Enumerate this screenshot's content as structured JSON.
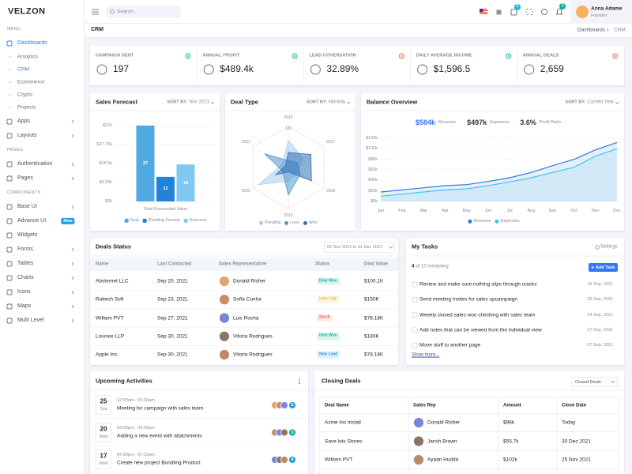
{
  "sidebar": {
    "logo": "VELZON",
    "sections": [
      {
        "title": "MENU",
        "items": [
          {
            "label": "Dashboards",
            "children": [
              "Analytics",
              "CRM",
              "Ecommerce",
              "Crypto",
              "Projects"
            ]
          },
          {
            "label": "Apps"
          },
          {
            "label": "Layouts"
          }
        ]
      },
      {
        "title": "PAGES",
        "items": [
          {
            "label": "Authentication"
          },
          {
            "label": "Pages"
          }
        ]
      },
      {
        "title": "COMPONENTS",
        "items": [
          {
            "label": "Base UI"
          },
          {
            "label": "Advance UI",
            "badge": "New"
          },
          {
            "label": "Widgets"
          },
          {
            "label": "Forms"
          },
          {
            "label": "Tables"
          },
          {
            "label": "Charts"
          },
          {
            "label": "Icons"
          },
          {
            "label": "Maps"
          },
          {
            "label": "Multi Level"
          }
        ]
      }
    ]
  },
  "topbar": {
    "search_placeholder": "Search...",
    "cart_badge": "2",
    "notification_badge": "3",
    "user": {
      "name": "Anna Adame",
      "role": "Founder"
    }
  },
  "page_header": {
    "title": "CRM",
    "breadcrumb": [
      "Dashboards",
      "CRM"
    ]
  },
  "stats": [
    {
      "label": "CAMPAIGN SENT",
      "value": "197",
      "trend_color": "#0ab39c"
    },
    {
      "label": "ANNUAL PROFIT",
      "value": "$489.4k",
      "trend_color": "#0ab39c"
    },
    {
      "label": "LEAD COVERSATION",
      "value": "32.89%",
      "trend_color": "#f06548"
    },
    {
      "label": "DAILY AVERAGE INCOME",
      "value": "$1,596.5",
      "trend_color": "#0ab39c"
    },
    {
      "label": "ANNUAL DEALS",
      "value": "2,659",
      "trend_color": "#f06548"
    }
  ],
  "chart_data": [
    {
      "type": "bar",
      "title": "Sales Forecast",
      "sort_label": "SORT BY:",
      "sort_value": "Nov 2021",
      "categories": [
        "Total Forecasted Value"
      ],
      "series": [
        {
          "name": "Goal",
          "color": "#4fa9e3",
          "values": [
            37
          ]
        },
        {
          "name": "Pending Forcast",
          "color": "#2282d9",
          "values": [
            12
          ]
        },
        {
          "name": "Revenue",
          "color": "#7ec8f2",
          "values": [
            18
          ]
        }
      ],
      "ylim": [
        0,
        37
      ],
      "yticks": [
        {
          "value": 0,
          "label": "$0k"
        },
        {
          "value": 9.25,
          "label": "$9.25k"
        },
        {
          "value": 18.5,
          "label": "$18.5k"
        },
        {
          "value": 27.75,
          "label": "$27.75k"
        },
        {
          "value": 37,
          "label": "$37k"
        }
      ],
      "grid": true
    },
    {
      "type": "radar",
      "title": "Deal Type",
      "sort_label": "SORT BY:",
      "sort_value": "Monthly",
      "categories": [
        "2016",
        "2017",
        "2018",
        "2019",
        "2020",
        "2021"
      ],
      "series": [
        {
          "name": "Pending",
          "color": "#a9cdee",
          "values": [
            80,
            50,
            30,
            40,
            100,
            20
          ]
        },
        {
          "name": "Loss",
          "color": "#4e98d2",
          "values": [
            20,
            30,
            40,
            80,
            20,
            80
          ]
        },
        {
          "name": "Won",
          "color": "#2f6fb5",
          "values": [
            44,
            76,
            78,
            13,
            43,
            10
          ]
        }
      ],
      "rlim": [
        0,
        120
      ],
      "rticks": [
        120
      ]
    },
    {
      "type": "line",
      "title": "Balance Overview",
      "sort_label": "SORT BY:",
      "sort_value": "Current Year",
      "summary": [
        {
          "value": "$584k",
          "label": "Revenue"
        },
        {
          "value": "$497k",
          "label": "Expenses"
        },
        {
          "value": "3.6%",
          "label": "Profit Ratio"
        }
      ],
      "categories": [
        "Jan",
        "Feb",
        "Mar",
        "Apr",
        "May",
        "Jun",
        "Jul",
        "Aug",
        "Sep",
        "Oct",
        "Nov",
        "Dec"
      ],
      "series": [
        {
          "name": "Revenue",
          "color": "#2e79e0",
          "values": [
            18,
            22,
            26,
            30,
            32,
            38,
            45,
            55,
            68,
            80,
            98,
            112
          ]
        },
        {
          "name": "Expenses",
          "color": "#3ec7ea",
          "values": [
            10,
            14,
            18,
            22,
            24,
            30,
            37,
            45,
            55,
            65,
            86,
            100
          ]
        }
      ],
      "ylim": [
        0,
        120
      ],
      "yticks": [
        {
          "value": 0,
          "label": "$0k"
        },
        {
          "value": 20,
          "label": "$20k"
        },
        {
          "value": 40,
          "label": "$40k"
        },
        {
          "value": 60,
          "label": "$60k"
        },
        {
          "value": 80,
          "label": "$80k"
        },
        {
          "value": 100,
          "label": "$100k"
        },
        {
          "value": 120,
          "label": "$120k"
        }
      ],
      "grid": true,
      "area": true
    }
  ],
  "deals_status": {
    "title": "Deals Status",
    "date_range": "02 Nov 2021 to 31 Dec 2021",
    "columns": [
      "Name",
      "Last Contacted",
      "Sales Representative",
      "Status",
      "Deal Value"
    ],
    "rows": [
      {
        "name": "Absternet LLC",
        "last_contacted": "Sep 20, 2021",
        "sales_rep": "Donald Risher",
        "status": "Deal Won",
        "status_color": "#0ab39c",
        "deal_value": "$100.1K"
      },
      {
        "name": "Raitech Soft",
        "last_contacted": "Sep 23, 2021",
        "sales_rep": "Sofia Cunha",
        "status": "Intro Call",
        "status_color": "#f7b84b",
        "deal_value": "$150K"
      },
      {
        "name": "William PVT",
        "last_contacted": "Sep 27, 2021",
        "sales_rep": "Luis Rocha",
        "status": "Stuck",
        "status_color": "#f06548",
        "deal_value": "$78.18K"
      },
      {
        "name": "Loiusee LLP",
        "last_contacted": "Sep 30, 2021",
        "sales_rep": "Vitoria Rodrigues",
        "status": "Deal Won",
        "status_color": "#0ab39c",
        "deal_value": "$180K"
      },
      {
        "name": "Apple Inc.",
        "last_contacted": "Sep 30, 2021",
        "sales_rep": "Vitoria Rodrigues",
        "status": "New Lead",
        "status_color": "#299cdb",
        "deal_value": "$78.18K"
      }
    ]
  },
  "tasks": {
    "title": "My Tasks",
    "settings": "Settings",
    "remaining_count": "4",
    "remaining_text": "of 10 remaining",
    "add_button": "Add Task",
    "items": [
      {
        "text": "Review and make sure nothing slips through cracks",
        "date": "15 Sep, 2021"
      },
      {
        "text": "Send meeting invites for sales upcampaign",
        "date": "20 Sep, 2021"
      },
      {
        "text": "Weekly closed sales won checking with sales team",
        "date": "24 Sep, 2021"
      },
      {
        "text": "Add notes that can be viewed from the individual view",
        "date": "27 Sep, 2021"
      },
      {
        "text": "Move stuff to another page",
        "date": "27 Sep, 2021"
      }
    ],
    "show_more": "Show more..."
  },
  "activities": {
    "title": "Upcoming Activities",
    "items": [
      {
        "day": "25",
        "weekday": "Tue",
        "time": "12:00am - 03:30am",
        "title": "Meeting for campaign with sales team",
        "count": "5",
        "count_color": "#299cdb"
      },
      {
        "day": "20",
        "weekday": "Wed",
        "time": "02:00pm - 03:45pm",
        "title": "Adding a new event with attachments",
        "count": "3",
        "count_color": "#0ab39c"
      },
      {
        "day": "17",
        "weekday": "Wed",
        "time": "04:30pm - 07:15pm",
        "title": "Create new project Bundling Product",
        "count": "4",
        "count_color": "#299cdb"
      }
    ]
  },
  "closing_deals": {
    "title": "Closing Deals",
    "filter": "Closed Deals",
    "columns": [
      "Deal Name",
      "Sales Rep",
      "Amount",
      "Close Date"
    ],
    "rows": [
      {
        "deal_name": "Acme Inc Install",
        "sales_rep": "Donald Risher",
        "amount": "$96k",
        "close_date": "Today"
      },
      {
        "deal_name": "Save lots Stores",
        "sales_rep": "Jansh Brown",
        "amount": "$55.7k",
        "close_date": "30 Dec 2021"
      },
      {
        "deal_name": "William PVT",
        "sales_rep": "Ayaan Hudda",
        "amount": "$102k",
        "close_date": "25 Nov 2021"
      }
    ]
  }
}
